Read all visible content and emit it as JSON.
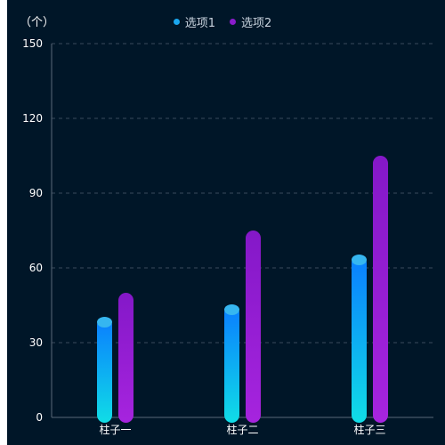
{
  "chart_data": {
    "type": "bar",
    "ylabel": "（个）",
    "ylim": [
      0,
      150
    ],
    "yticks": [
      0,
      30,
      60,
      90,
      120,
      150
    ],
    "grid": true,
    "legend_position": "top-center",
    "categories": [
      "柱子一",
      "柱子二",
      "柱子三"
    ],
    "series": [
      {
        "name": "选项1",
        "values": [
          40,
          45,
          65
        ],
        "color": "#0a84ff",
        "color_bottom": "#0fd8e8",
        "cap_color": "#36b6f0"
      },
      {
        "name": "选项2",
        "values": [
          50,
          75,
          105
        ],
        "color": "#8a1ccc",
        "color_bottom": "#a322dc"
      }
    ]
  }
}
